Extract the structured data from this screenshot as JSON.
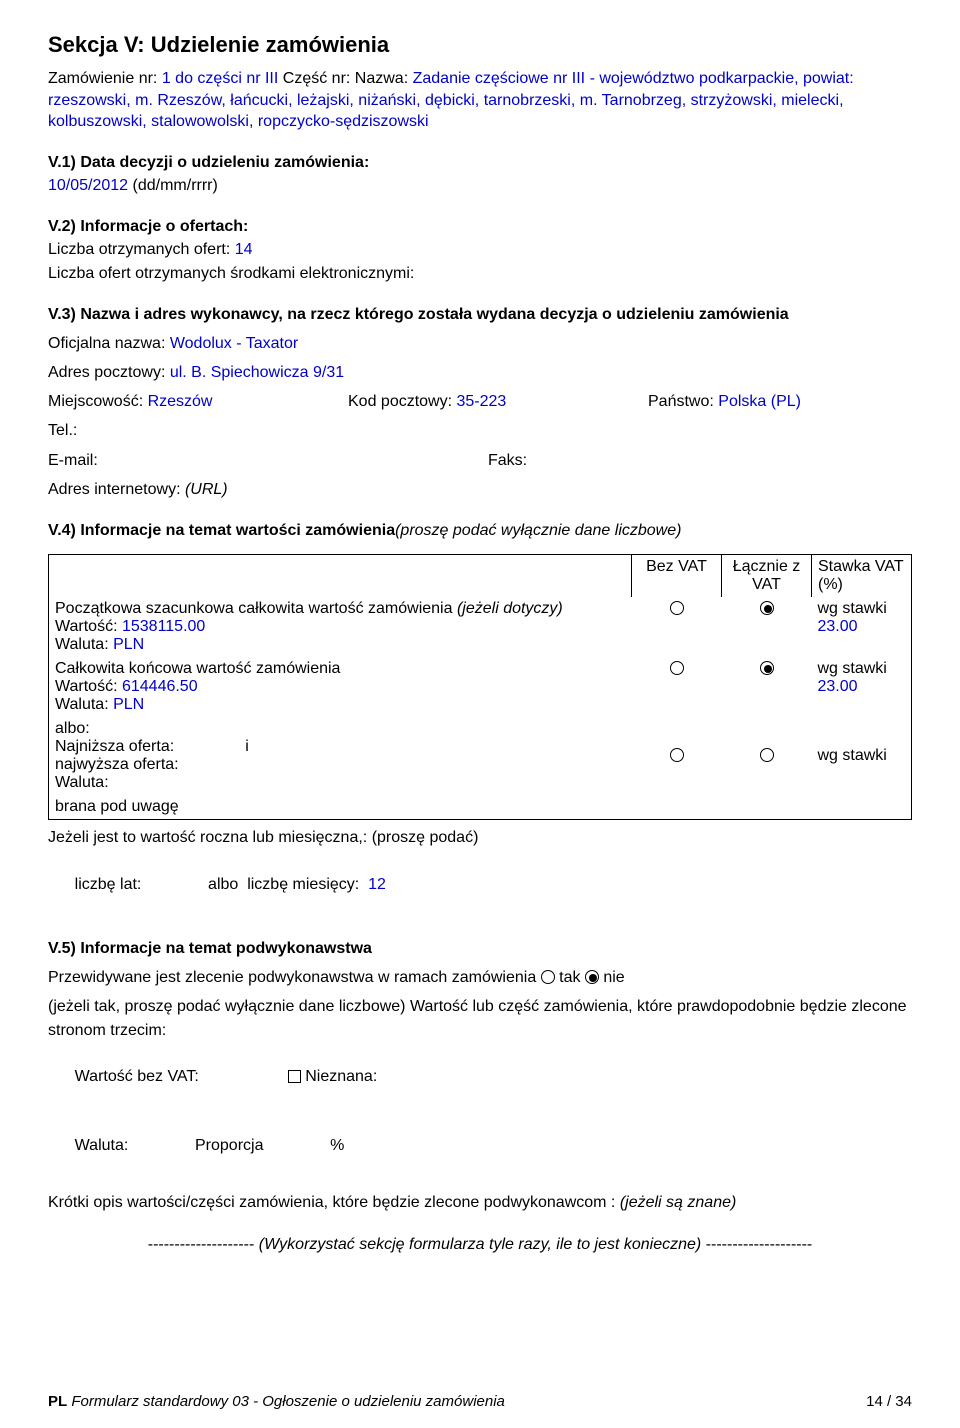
{
  "section": {
    "title": "Sekcja V: Udzielenie zamówienia",
    "order_line_label": "Zamówienie nr: ",
    "order_nr": "1 do części nr III",
    "part_label": "  Część nr: ",
    "name_label": "        Nazwa: ",
    "name_value": "Zadanie częściowe nr III - województwo podkarpackie, powiat: rzeszowski, m. Rzeszów, łańcucki, leżajski, niżański, dębicki, tarnobrzeski, m. Tarnobrzeg, strzyżowski, mielecki, kolbuszowski, stalowowolski, ropczycko-sędziszowski"
  },
  "v1": {
    "heading": "V.1) Data decyzji o udzieleniu zamówienia:",
    "date": "10/05/2012",
    "date_suffix": "  (dd/mm/rrrr)"
  },
  "v2": {
    "heading": "V.2) Informacje o ofertach:",
    "l1_label": "Liczba otrzymanych ofert:  ",
    "l1_value": "14",
    "l2": "Liczba ofert otrzymanych środkami elektronicznymi:"
  },
  "v3": {
    "heading": "V.3) Nazwa i adres wykonawcy, na rzecz którego została wydana decyzja o udzieleniu zamówienia",
    "off_label": "Oficjalna nazwa:  ",
    "off_value": "Wodolux - Taxator",
    "addr_label": "Adres pocztowy: ",
    "addr_value": "ul. B. Spiechowicza 9/31",
    "city_label": "Miejscowość:  ",
    "city_value": "Rzeszów",
    "zip_label": "Kod pocztowy:  ",
    "zip_value": "35-223",
    "country_label": "Państwo:  ",
    "country_value": "Polska (PL)",
    "tel": "Tel.:",
    "email": "E-mail:",
    "fax": "Faks:",
    "url_label": "Adres internetowy:  ",
    "url_value": "(URL)"
  },
  "v4": {
    "heading": "V.4) Informacje na temat wartości zamówienia",
    "heading_suffix": "(proszę podać wyłącznie dane liczbowe)",
    "col_bez": "Bez VAT",
    "col_z": "Łącznie z VAT",
    "col_st": "Stawka VAT (%)",
    "r1_label": "Początkowa szacunkowa całkowita wartość zamówienia ",
    "r1_suffix": "(jeżeli dotyczy)",
    "r1_val_label": "Wartość:  ",
    "r1_val": "1538115.00",
    "r1_cur_label": "Waluta:  ",
    "r1_cur": "PLN",
    "r1_rate_label": "wg stawki",
    "r1_rate": "23.00",
    "r2_label": "Całkowita końcowa wartość zamówienia",
    "r2_val_label": "Wartość:  ",
    "r2_val": "614446.50",
    "r2_cur_label": "Waluta:  ",
    "r2_cur": "PLN",
    "r2_rate_label": "wg stawki",
    "r2_rate": "23.00",
    "r3_albo": "albo:",
    "r3_low": "Najniższa oferta: ",
    "r3_i": "               i",
    "r3_high": "najwyższa oferta:",
    "r3_cur": "Waluta:",
    "r3_rate_label": "wg stawki",
    "r4": "brana pod uwagę",
    "post1": "Jeżeli jest to wartość roczna lub miesięczna,: (proszę podać)",
    "post2a": "liczbę lat:",
    "post2b": "               albo  liczbę miesięcy:  ",
    "post2_val": "12"
  },
  "v5": {
    "heading": "V.5) Informacje na temat podwykonawstwa",
    "l1a": "Przewidywane jest zlecenie podwykonawstwa w ramach zamówienia   ",
    "l1_tak": " tak  ",
    "l1_nie": " nie",
    "l2": "(jeżeli tak, proszę podać wyłącznie dane liczbowe) Wartość lub część zamówienia, które prawdopodobnie będzie zlecone stronom trzecim:",
    "l3a": "Wartość bez VAT:",
    "l3b": "                    ",
    "l3c": " Nieznana:",
    "l4a": "Waluta:",
    "l4b": "               Proporcja",
    "l4c": "               %",
    "l5a": "Krótki opis wartości/części zamówienia, które będzie zlecone podwykonawcom :  ",
    "l5b": "(jeżeli są znane)"
  },
  "sep": {
    "dashes_l": "--------------------  ",
    "text": "(Wykorzystać sekcję formularza tyle razy, ile to jest konieczne)",
    "dashes_r": "  --------------------"
  },
  "footer": {
    "left_pl": "PL",
    "left_text": "  Formularz standardowy 03 - Ogłoszenie o udzieleniu zamówienia",
    "right": "14 / 34"
  }
}
